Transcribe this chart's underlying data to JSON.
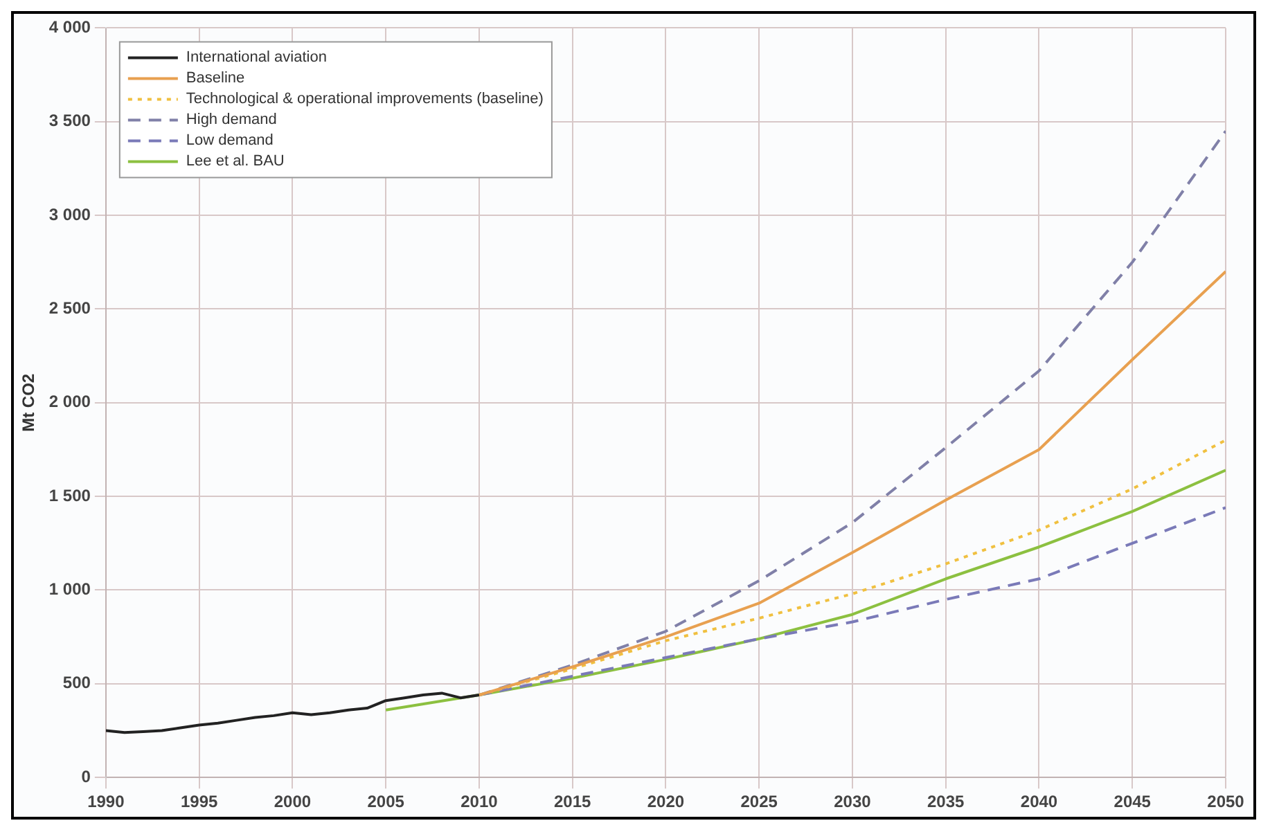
{
  "chart_data": {
    "type": "line",
    "ylabel": "Mt CO2",
    "x": [
      1990,
      1991,
      1992,
      1993,
      1994,
      1995,
      1996,
      1997,
      1998,
      1999,
      2000,
      2001,
      2002,
      2003,
      2004,
      2005,
      2006,
      2007,
      2008,
      2009,
      2010
    ],
    "series": [
      {
        "name": "International aviation",
        "color": "#222222",
        "line_style": "solid",
        "values": [
          250,
          240,
          245,
          250,
          265,
          280,
          290,
          305,
          320,
          330,
          345,
          335,
          345,
          360,
          370,
          410,
          425,
          440,
          450,
          425,
          440
        ]
      },
      {
        "name": "Baseline",
        "color": "#e8a050",
        "line_style": "solid",
        "x": [
          2010,
          2015,
          2020,
          2025,
          2030,
          2035,
          2040,
          2045,
          2050
        ],
        "values": [
          440,
          590,
          750,
          930,
          1200,
          1480,
          1750,
          2230,
          2700
        ]
      },
      {
        "name": "Technological & operational improvements (baseline)",
        "color": "#f0c040",
        "line_style": "dotted",
        "x": [
          2010,
          2015,
          2020,
          2025,
          2030,
          2035,
          2040,
          2045,
          2050
        ],
        "values": [
          440,
          580,
          730,
          850,
          980,
          1140,
          1320,
          1540,
          1800
        ]
      },
      {
        "name": "High demand",
        "color": "#8080a8",
        "line_style": "dashed",
        "x": [
          2010,
          2015,
          2020,
          2025,
          2030,
          2035,
          2040,
          2045,
          2050
        ],
        "values": [
          440,
          600,
          780,
          1050,
          1360,
          1760,
          2170,
          2750,
          3450
        ]
      },
      {
        "name": "Low demand",
        "color": "#7a7ab8",
        "line_style": "dashed",
        "x": [
          2010,
          2015,
          2020,
          2025,
          2030,
          2035,
          2040,
          2045,
          2050
        ],
        "values": [
          440,
          540,
          640,
          740,
          830,
          950,
          1060,
          1250,
          1440
        ]
      },
      {
        "name": "Lee et al. BAU",
        "color": "#8cc040",
        "line_style": "solid",
        "x": [
          2005,
          2010,
          2015,
          2020,
          2025,
          2030,
          2035,
          2040,
          2045,
          2050
        ],
        "values": [
          360,
          440,
          530,
          630,
          740,
          870,
          1060,
          1230,
          1420,
          1640
        ]
      }
    ],
    "xlim": [
      1990,
      2050
    ],
    "xticks": [
      1990,
      1995,
      2000,
      2005,
      2010,
      2015,
      2020,
      2025,
      2030,
      2035,
      2040,
      2045,
      2050
    ],
    "ylim": [
      0,
      4000
    ],
    "yticks": [
      0,
      500,
      {
        "value": 1000,
        "label": "1 000"
      },
      {
        "value": 1500,
        "label": "1 500"
      },
      {
        "value": 2000,
        "label": "2 000"
      },
      {
        "value": 2500,
        "label": "2 500"
      },
      {
        "value": 3000,
        "label": "3 000"
      },
      {
        "value": 3500,
        "label": "3 500"
      },
      {
        "value": 4000,
        "label": "4 000"
      }
    ],
    "grid": true,
    "legend": "top left",
    "marker": "none"
  }
}
